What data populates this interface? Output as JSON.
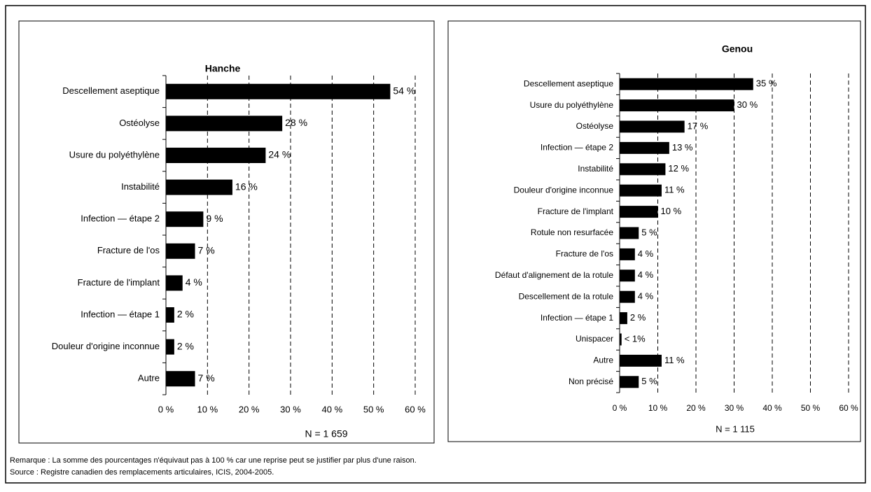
{
  "chart_data": [
    {
      "type": "barh",
      "title": "Hanche",
      "categories": [
        "Descellement aseptique",
        "Ostéolyse",
        "Usure du polyéthylène",
        "Instabilité",
        "Infection — étape 2",
        "Fracture de l'os",
        "Fracture de l'implant",
        "Infection — étape 1",
        "Douleur d'origine inconnue",
        "Autre"
      ],
      "values": [
        54,
        28,
        24,
        16,
        9,
        7,
        4,
        2,
        2,
        7
      ],
      "value_labels": [
        "54 %",
        "28 %",
        "24 %",
        "16 %",
        "9 %",
        "7 %",
        "4 %",
        "2 %",
        "2 %",
        "7 %"
      ],
      "color": "#000000",
      "xlim": [
        0,
        60
      ],
      "xticks": [
        {
          "value": 0,
          "label": "0 %"
        },
        {
          "value": 10,
          "label": "10 %"
        },
        {
          "value": 20,
          "label": "20 %"
        },
        {
          "value": 30,
          "label": "30 %"
        },
        {
          "value": 40,
          "label": "40 %"
        },
        {
          "value": 50,
          "label": "50 %"
        },
        {
          "value": 60,
          "label": "60 %"
        }
      ],
      "grid": true,
      "annotation": "N = 1 659"
    },
    {
      "type": "barh",
      "title": "Genou",
      "categories": [
        "Descellement aseptique",
        "Usure du polyéthylène",
        "Ostéolyse",
        "Infection — étape 2",
        "Instabilité",
        "Douleur d'origine inconnue",
        "Fracture de l'implant",
        "Rotule non resurfacée",
        "Fracture de l'os",
        "Défaut d'alignement de la rotule",
        "Descellement de la rotule",
        "Infection — étape 1",
        "Unispacer",
        "Autre",
        "Non précisé"
      ],
      "values": [
        35,
        30,
        17,
        13,
        12,
        11,
        10,
        5,
        4,
        4,
        4,
        2,
        0.5,
        11,
        5
      ],
      "value_labels": [
        "35 %",
        "30 %",
        "17 %",
        "13 %",
        "12 %",
        "11 %",
        "10 %",
        "5 %",
        "4 %",
        "4 %",
        "4 %",
        "2 %",
        "< 1%",
        "11 %",
        "5 %"
      ],
      "color": "#000000",
      "xlim": [
        0,
        60
      ],
      "xticks": [
        {
          "value": 0,
          "label": "0 %"
        },
        {
          "value": 10,
          "label": "10 %"
        },
        {
          "value": 20,
          "label": "20 %"
        },
        {
          "value": 30,
          "label": "30 %"
        },
        {
          "value": 40,
          "label": "40 %"
        },
        {
          "value": 50,
          "label": "50 %"
        },
        {
          "value": 60,
          "label": "60 %"
        }
      ],
      "grid": true,
      "annotation": "N = 1 115"
    }
  ],
  "notes": [
    "Remarque : La somme des pourcentages n'équivaut pas à 100 % car une reprise peut se justifier par plus d'une raison.",
    "Source : Registre canadien des remplacements articulaires, ICIS, 2004-2005."
  ]
}
